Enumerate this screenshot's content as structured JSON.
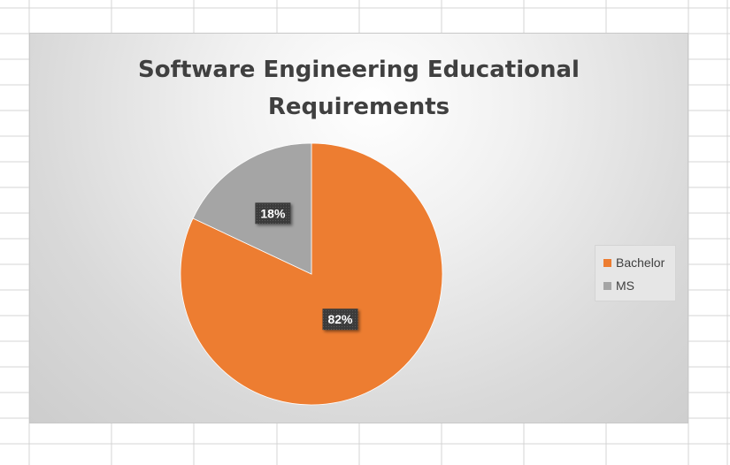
{
  "chart_data": {
    "type": "pie",
    "title_lines": [
      "Software Engineering Educational",
      "Requirements"
    ],
    "categories": [
      "Bachelor",
      "MS"
    ],
    "values": [
      82,
      18
    ],
    "data_labels": [
      "82%",
      "18%"
    ],
    "colors": [
      "#ED7D31",
      "#A5A5A5"
    ],
    "legend_position": "right"
  }
}
